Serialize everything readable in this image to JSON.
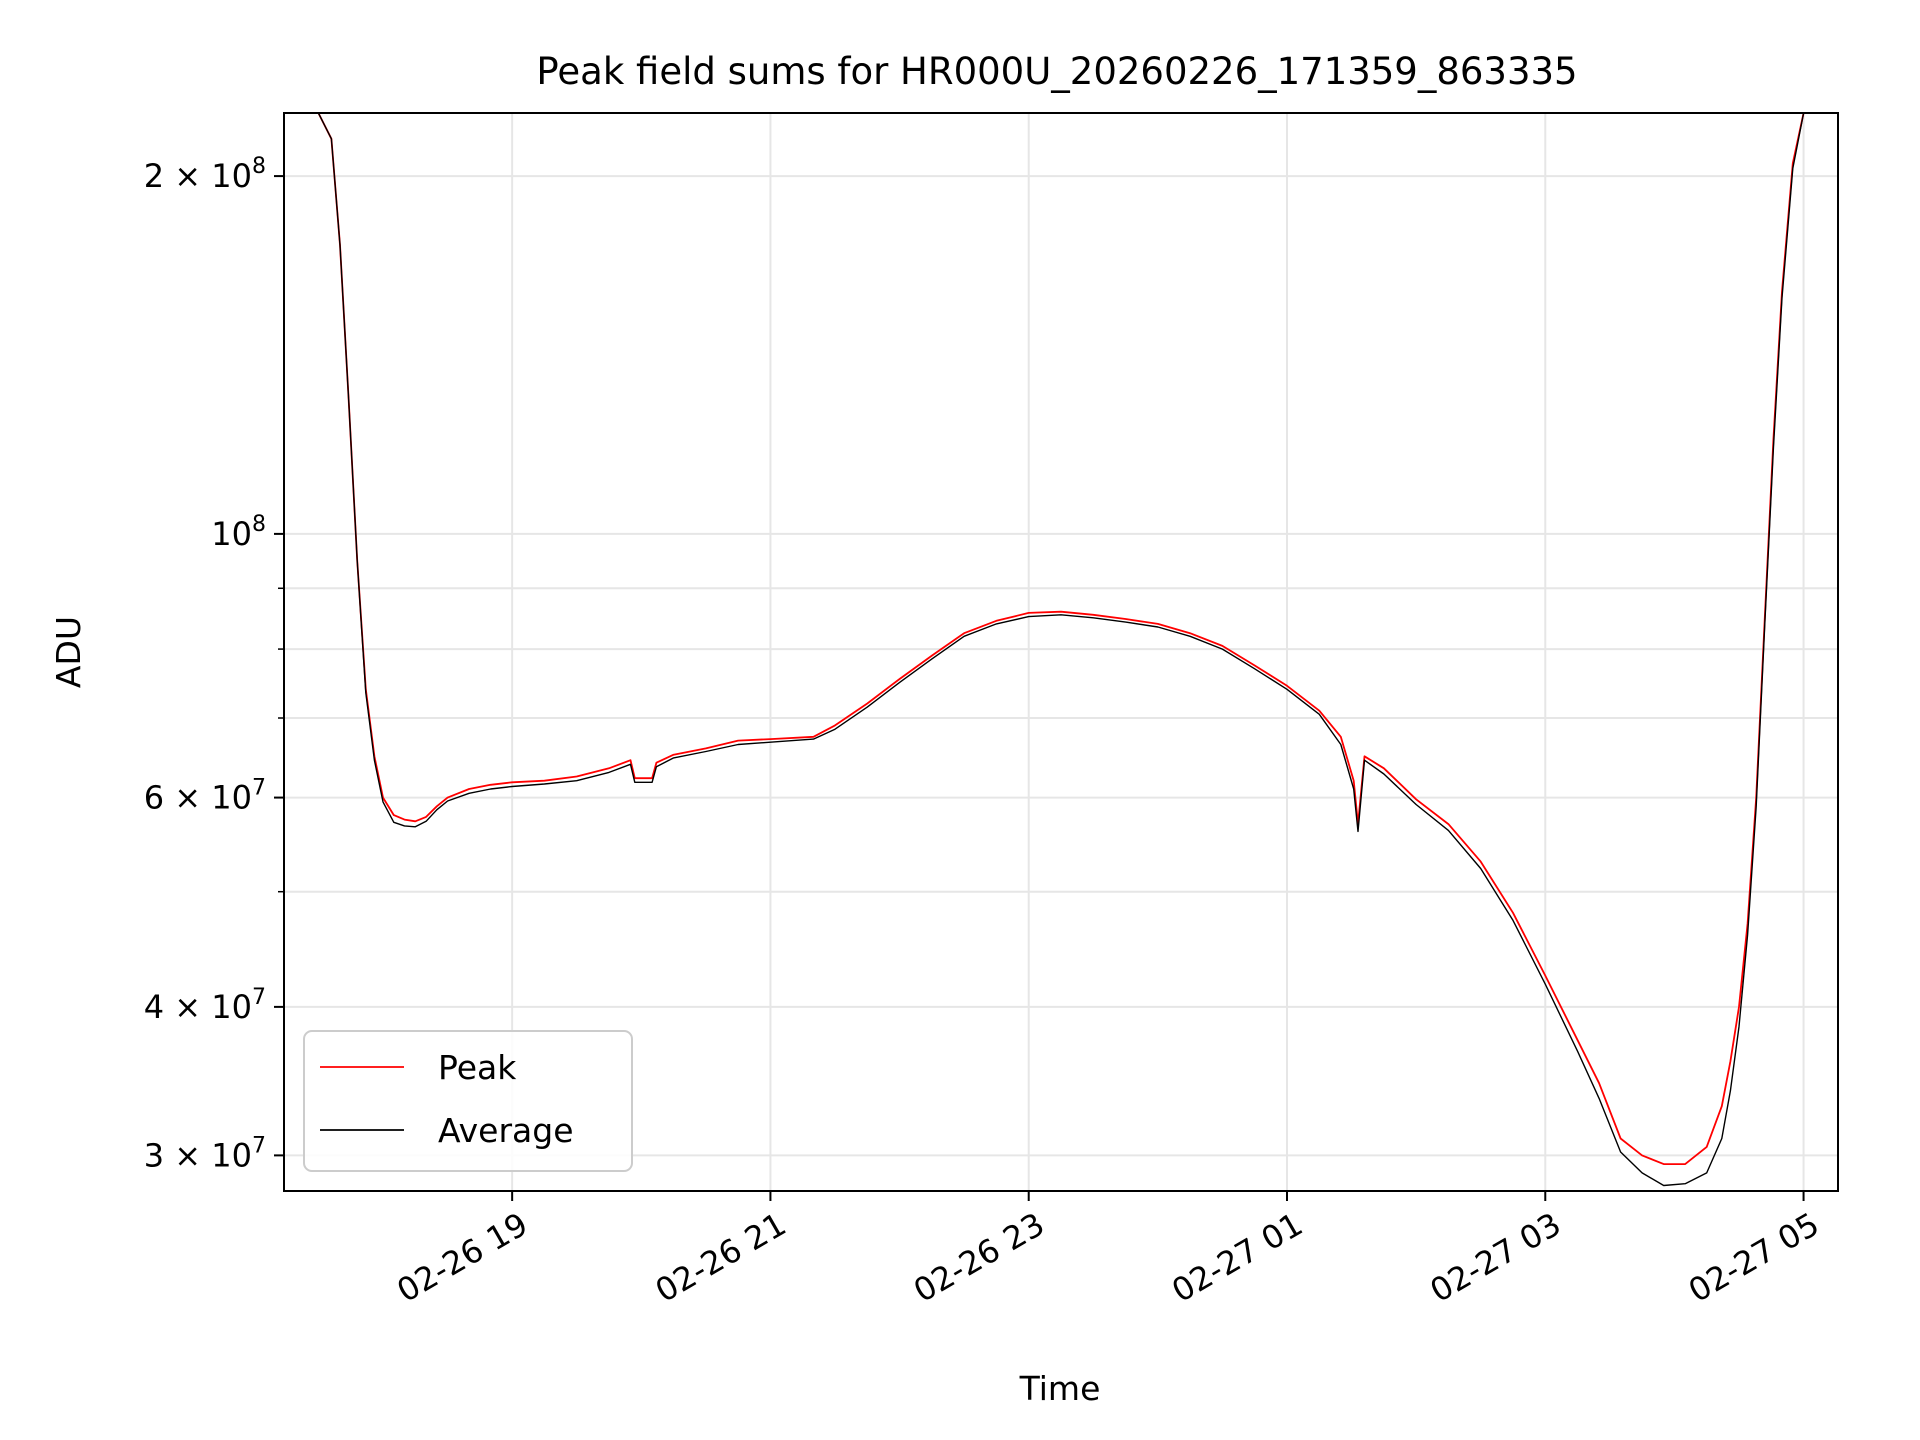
{
  "chart_data": {
    "type": "line",
    "title": "Peak field sums for HR000U_20260226_171359_863335",
    "xlabel": "Time",
    "ylabel": "ADU",
    "yscale": "log",
    "ylim": [
      28000000,
      226000000
    ],
    "xlim": [
      "02-26 17:14",
      "02-27 05:16"
    ],
    "grid": true,
    "legend": "lower-left",
    "x_ticks": [
      {
        "value": "02-26 19:00",
        "label": "02-26 19"
      },
      {
        "value": "02-26 21:00",
        "label": "02-26 21"
      },
      {
        "value": "02-26 23:00",
        "label": "02-26 23"
      },
      {
        "value": "02-27 01:00",
        "label": "02-27 01"
      },
      {
        "value": "02-27 03:00",
        "label": "02-27 03"
      },
      {
        "value": "02-27 05:00",
        "label": "02-27 05"
      }
    ],
    "y_major_ticks": [
      {
        "value": 30000000,
        "base": "3 × 10",
        "exp": "7"
      },
      {
        "value": 40000000,
        "base": "4 × 10",
        "exp": "7"
      },
      {
        "value": 60000000,
        "base": "6 × 10",
        "exp": "7"
      },
      {
        "value": 100000000,
        "base": "10",
        "exp": "8"
      },
      {
        "value": 200000000,
        "base": "2 × 10",
        "exp": "8"
      }
    ],
    "y_minor_ticks": [
      50000000,
      70000000,
      80000000,
      90000000
    ],
    "series": [
      {
        "name": "Peak",
        "color": "#ff0000",
        "x": [
          "02-26 17:14",
          "02-26 17:30",
          "02-26 17:36",
          "02-26 17:40",
          "02-26 17:44",
          "02-26 17:48",
          "02-26 17:52",
          "02-26 17:56",
          "02-26 18:00",
          "02-26 18:05",
          "02-26 18:10",
          "02-26 18:15",
          "02-26 18:20",
          "02-26 18:25",
          "02-26 18:30",
          "02-26 18:40",
          "02-26 18:50",
          "02-26 19:00",
          "02-26 19:15",
          "02-26 19:30",
          "02-26 19:45",
          "02-26 19:55",
          "02-26 19:57",
          "02-26 20:05",
          "02-26 20:07",
          "02-26 20:15",
          "02-26 20:30",
          "02-26 20:45",
          "02-26 21:00",
          "02-26 21:20",
          "02-26 21:30",
          "02-26 21:45",
          "02-26 22:00",
          "02-26 22:15",
          "02-26 22:30",
          "02-26 22:45",
          "02-26 23:00",
          "02-26 23:15",
          "02-26 23:30",
          "02-26 23:45",
          "02-27 00:00",
          "02-27 00:15",
          "02-27 00:30",
          "02-27 00:45",
          "02-27 01:00",
          "02-27 01:15",
          "02-27 01:25",
          "02-27 01:31",
          "02-27 01:33",
          "02-27 01:36",
          "02-27 01:45",
          "02-27 02:00",
          "02-27 02:15",
          "02-27 02:30",
          "02-27 02:45",
          "02-27 03:00",
          "02-27 03:15",
          "02-27 03:25",
          "02-27 03:35",
          "02-27 03:45",
          "02-27 03:55",
          "02-27 04:05",
          "02-27 04:15",
          "02-27 04:22",
          "02-27 04:26",
          "02-27 04:30",
          "02-27 04:34",
          "02-27 04:38",
          "02-27 04:42",
          "02-27 04:46",
          "02-27 04:50",
          "02-27 04:55",
          "02-27 05:00",
          "02-27 05:04"
        ],
        "values": [
          226000000,
          226000000,
          215000000,
          175000000,
          130000000,
          95000000,
          74000000,
          65000000,
          60000000,
          58000000,
          57500000,
          57300000,
          57800000,
          59000000,
          60000000,
          61000000,
          61500000,
          61800000,
          62000000,
          62500000,
          63500000,
          64500000,
          62300000,
          62300000,
          64200000,
          65200000,
          66000000,
          67000000,
          67200000,
          67500000,
          69000000,
          72000000,
          75500000,
          79000000,
          82500000,
          84500000,
          85800000,
          86000000,
          85500000,
          84800000,
          84000000,
          82500000,
          80500000,
          77500000,
          74500000,
          71000000,
          67500000,
          62000000,
          57000000,
          65000000,
          63500000,
          59800000,
          57000000,
          53000000,
          48000000,
          42500000,
          37500000,
          34500000,
          31000000,
          30000000,
          29500000,
          29500000,
          30500000,
          33000000,
          36000000,
          40000000,
          47000000,
          60000000,
          85000000,
          120000000,
          160000000,
          205000000,
          226000000,
          226000000
        ]
      },
      {
        "name": "Average",
        "color": "#000000",
        "x": [
          "02-26 17:14",
          "02-26 17:30",
          "02-26 17:36",
          "02-26 17:40",
          "02-26 17:44",
          "02-26 17:48",
          "02-26 17:52",
          "02-26 17:56",
          "02-26 18:00",
          "02-26 18:05",
          "02-26 18:10",
          "02-26 18:15",
          "02-26 18:20",
          "02-26 18:25",
          "02-26 18:30",
          "02-26 18:40",
          "02-26 18:50",
          "02-26 19:00",
          "02-26 19:15",
          "02-26 19:30",
          "02-26 19:45",
          "02-26 19:55",
          "02-26 19:57",
          "02-26 20:05",
          "02-26 20:07",
          "02-26 20:15",
          "02-26 20:30",
          "02-26 20:45",
          "02-26 21:00",
          "02-26 21:20",
          "02-26 21:30",
          "02-26 21:45",
          "02-26 22:00",
          "02-26 22:15",
          "02-26 22:30",
          "02-26 22:45",
          "02-26 23:00",
          "02-26 23:15",
          "02-26 23:30",
          "02-26 23:45",
          "02-27 00:00",
          "02-27 00:15",
          "02-27 00:30",
          "02-27 00:45",
          "02-27 01:00",
          "02-27 01:15",
          "02-27 01:25",
          "02-27 01:31",
          "02-27 01:33",
          "02-27 01:36",
          "02-27 01:45",
          "02-27 02:00",
          "02-27 02:15",
          "02-27 02:30",
          "02-27 02:45",
          "02-27 03:00",
          "02-27 03:15",
          "02-27 03:25",
          "02-27 03:35",
          "02-27 03:45",
          "02-27 03:55",
          "02-27 04:05",
          "02-27 04:15",
          "02-27 04:22",
          "02-27 04:26",
          "02-27 04:30",
          "02-27 04:34",
          "02-27 04:38",
          "02-27 04:42",
          "02-27 04:46",
          "02-27 04:50",
          "02-27 04:55",
          "02-27 05:00",
          "02-27 05:04"
        ],
        "values": [
          226000000,
          226000000,
          215000000,
          175000000,
          130000000,
          95000000,
          73500000,
          64500000,
          59500000,
          57200000,
          56800000,
          56700000,
          57300000,
          58600000,
          59600000,
          60500000,
          61000000,
          61300000,
          61600000,
          62000000,
          63000000,
          64000000,
          61800000,
          61800000,
          63700000,
          64800000,
          65600000,
          66500000,
          66800000,
          67200000,
          68500000,
          71500000,
          75000000,
          78500000,
          82000000,
          84000000,
          85200000,
          85500000,
          85000000,
          84300000,
          83500000,
          82000000,
          80000000,
          77000000,
          74000000,
          70500000,
          66500000,
          61000000,
          56200000,
          64500000,
          62800000,
          59200000,
          56300000,
          52300000,
          47300000,
          41800000,
          36700000,
          33500000,
          30200000,
          29000000,
          28300000,
          28400000,
          29000000,
          31000000,
          34000000,
          38500000,
          46000000,
          59000000,
          84000000,
          118000000,
          158000000,
          203000000,
          226000000,
          226000000
        ]
      }
    ]
  }
}
